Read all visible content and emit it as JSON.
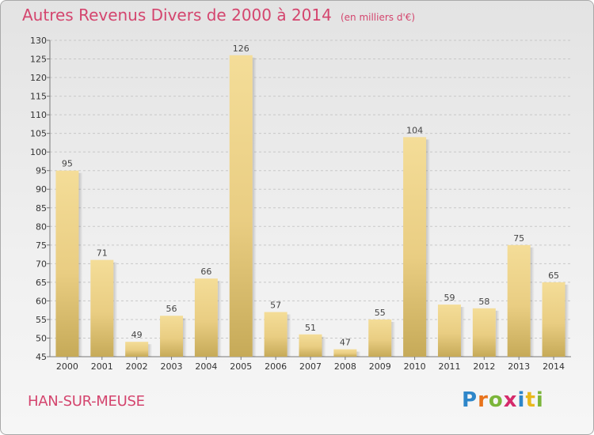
{
  "header": {
    "title": "Autres Revenus Divers de 2000 à 2014",
    "unit": "(en milliers d'€)"
  },
  "footer": {
    "commune": "HAN-SUR-MEUSE",
    "logo": "Proxiti"
  },
  "colors": {
    "title": "#d4456e",
    "bar_light": "#f4dd98",
    "bar_dark": "#c6aa58",
    "grid": "#c8c8c8"
  },
  "chart_data": {
    "type": "bar",
    "title": "Autres Revenus Divers de 2000 à 2014",
    "subtitle": "(en milliers d'€)",
    "xlabel": "",
    "ylabel": "",
    "categories": [
      "2000",
      "2001",
      "2002",
      "2003",
      "2004",
      "2005",
      "2006",
      "2007",
      "2008",
      "2009",
      "2010",
      "2011",
      "2012",
      "2013",
      "2014"
    ],
    "values": [
      95,
      71,
      49,
      56,
      66,
      126,
      57,
      51,
      47,
      55,
      104,
      59,
      58,
      75,
      65
    ],
    "ylim": [
      45,
      130
    ],
    "yticks": [
      45,
      50,
      55,
      60,
      65,
      70,
      75,
      80,
      85,
      90,
      95,
      100,
      105,
      110,
      115,
      120,
      125,
      130
    ],
    "grid": true,
    "legend": "none"
  }
}
